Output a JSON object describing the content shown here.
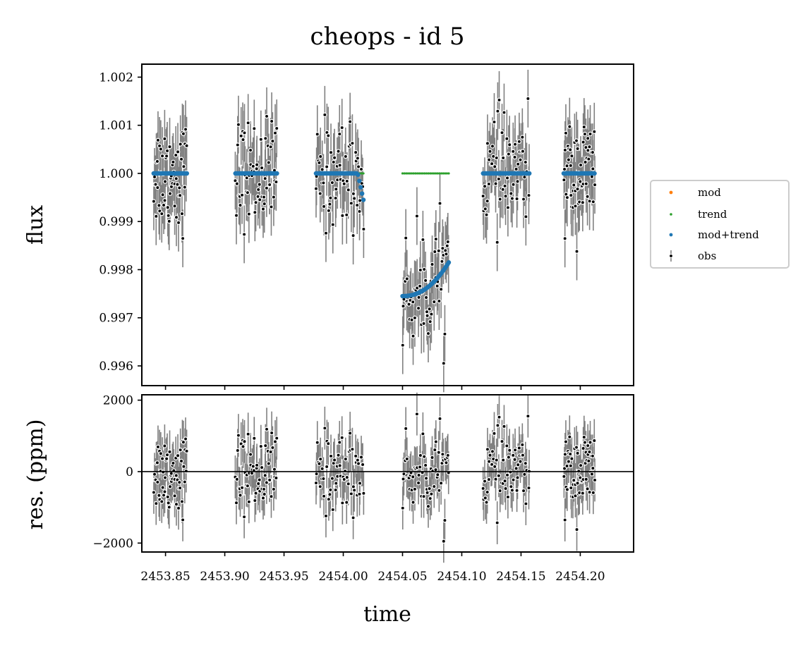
{
  "chart_data": {
    "type": "scatter",
    "title": "cheops - id 5",
    "xlabel": "time",
    "x_ticks": [
      "2453.85",
      "2453.90",
      "2453.95",
      "2454.00",
      "2454.05",
      "2454.10",
      "2454.15",
      "2454.20"
    ],
    "x_tick_values": [
      2453.85,
      2453.9,
      2453.95,
      2454.0,
      2454.05,
      2454.1,
      2454.15,
      2454.2
    ],
    "xlim": [
      2453.83,
      2454.245
    ],
    "top_panel": {
      "ylabel": "flux",
      "ylim": [
        0.99559,
        1.00227
      ],
      "y_ticks": [
        "0.996",
        "0.997",
        "0.998",
        "0.999",
        "1.000",
        "1.001",
        "1.002"
      ],
      "y_tick_values": [
        0.996,
        0.997,
        0.998,
        0.999,
        1.0,
        1.001,
        1.002
      ],
      "flux_errorbar": 0.0006,
      "legend": {
        "position": "center-right, outside",
        "entries": [
          {
            "label": "mod",
            "color": "#ff7f0e"
          },
          {
            "label": "trend",
            "color": "#2ca02c"
          },
          {
            "label": "mod+trend",
            "color": "#1f77b4"
          },
          {
            "label": "obs",
            "color": "#000000"
          }
        ]
      }
    },
    "bottom_panel": {
      "ylabel": "res. (ppm)",
      "ylim": [
        -2250,
        2150
      ],
      "y_ticks": [
        "−2000",
        "0",
        "2000"
      ],
      "y_tick_values": [
        -2000,
        0,
        2000
      ],
      "zero_line": 0,
      "residual_errorbar_ppm": 600
    },
    "segments": [
      {
        "t_start": 2453.84,
        "t_end": 2453.868,
        "model": {
          "kind": "flat",
          "value": 1.0
        },
        "trend_shown": false
      },
      {
        "t_start": 2453.909,
        "t_end": 2453.944,
        "model": {
          "kind": "flat",
          "value": 1.0
        },
        "trend_shown": false
      },
      {
        "t_start": 2453.977,
        "t_end": 2454.017,
        "model": {
          "kind": "flat_then_drop",
          "value": 1.0,
          "drop_to": 0.99945
        },
        "trend_shown": true
      },
      {
        "t_start": 2454.05,
        "t_end": 2454.089,
        "model": {
          "kind": "curve",
          "start": 0.99745,
          "end": 0.99815
        },
        "trend_shown": true
      },
      {
        "t_start": 2454.118,
        "t_end": 2454.157,
        "model": {
          "kind": "flat",
          "value": 1.0
        },
        "trend_shown": false
      },
      {
        "t_start": 2454.186,
        "t_end": 2454.212,
        "model": {
          "kind": "flat",
          "value": 1.0
        },
        "trend_shown": false
      }
    ],
    "series_colors": {
      "obs_marker": "#000000",
      "obs_edge": "#ffffff",
      "errorbar": "#808080",
      "mod": "#ff7f0e",
      "trend": "#2ca02c",
      "mod_trend": "#1f77b4"
    }
  }
}
